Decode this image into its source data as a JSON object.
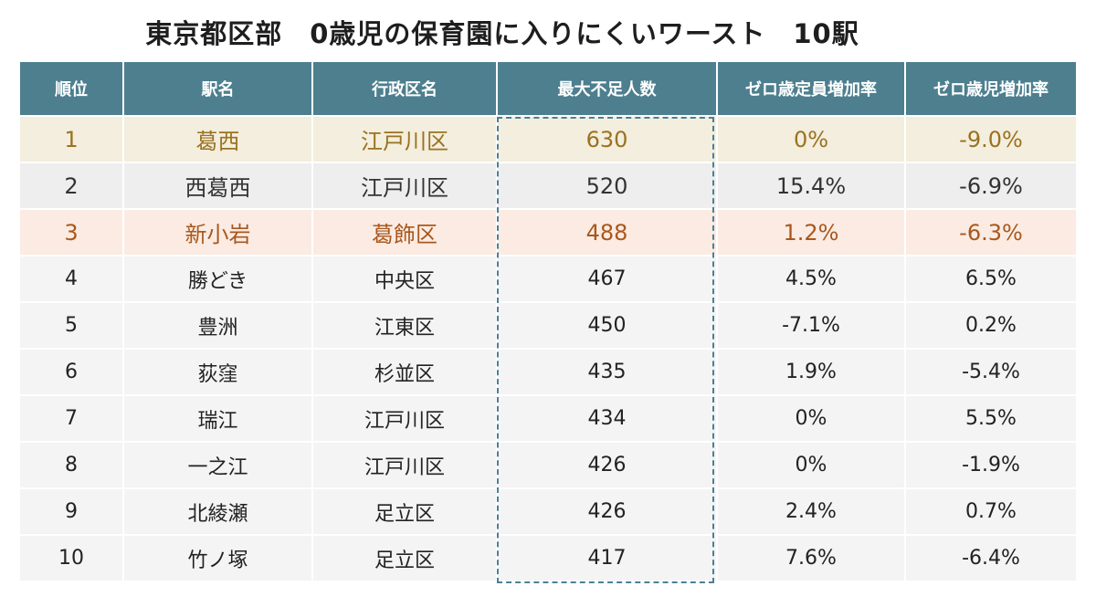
{
  "title": "東京都区部　0歳児の保育園に入りにくいワースト　10駅",
  "columns": [
    "順位",
    "駅名",
    "行政区名",
    "最大不足人数",
    "ゼロ歳定員増加率",
    "ゼロ歳児増加率"
  ],
  "rows": [
    [
      "1",
      "葛西",
      "江戸川区",
      "630",
      "0%",
      "-9.0%"
    ],
    [
      "2",
      "西葛西",
      "江戸川区",
      "520",
      "15.4%",
      "-6.9%"
    ],
    [
      "3",
      "新小岩",
      "葛飾区",
      "488",
      "1.2%",
      "-6.3%"
    ],
    [
      "4",
      "勝どき",
      "中央区",
      "467",
      "4.5%",
      "6.5%"
    ],
    [
      "5",
      "豊洲",
      "江東区",
      "450",
      "-7.1%",
      "0.2%"
    ],
    [
      "6",
      "荻窪",
      "杉並区",
      "435",
      "1.9%",
      "-5.4%"
    ],
    [
      "7",
      "瑞江",
      "江戸川区",
      "434",
      "0%",
      "5.5%"
    ],
    [
      "8",
      "一之江",
      "江戸川区",
      "426",
      "0%",
      "-1.9%"
    ],
    [
      "9",
      "北綾瀬",
      "足立区",
      "426",
      "2.4%",
      "0.7%"
    ],
    [
      "10",
      "竹ノ塚",
      "足立区",
      "417",
      "7.6%",
      "-6.4%"
    ]
  ],
  "colors": {
    "header_bg": "#4d7f8f",
    "row1_bg": "#f3eedd",
    "row1_text": "#9a7220",
    "row2_bg": "#eeeeee",
    "row3_bg": "#fbebe2",
    "row3_text": "#a8581f",
    "highlight_border": "#4b8096"
  }
}
